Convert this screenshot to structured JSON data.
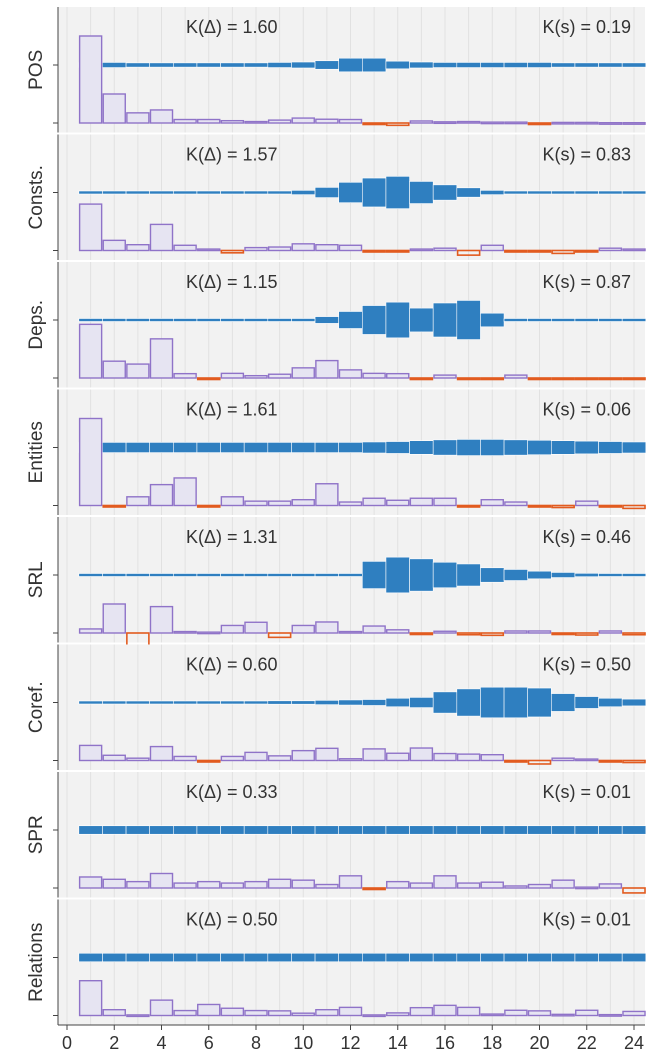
{
  "chart_data": {
    "type": "bar",
    "x_ticks": [
      "0",
      "2",
      "4",
      "6",
      "8",
      "10",
      "12",
      "14",
      "16",
      "18",
      "20",
      "22",
      "24"
    ],
    "xlim": [
      0,
      24
    ],
    "colors": {
      "weight_bar": "#2f7fc0",
      "positive_fill": "#e6e4f2",
      "positive_stroke": "#8f73c8",
      "negative_stroke": "#e25b1f",
      "panel_bg": "#f2f2f2",
      "grid": "#e1e1e1"
    },
    "panels": [
      {
        "label": "POS",
        "k_delta": "K(Δ) = 1.60",
        "k_s": "K(s) = 0.19",
        "weights": [
          0.06,
          0.06,
          0.05,
          0.05,
          0.05,
          0.05,
          0.05,
          0.05,
          0.06,
          0.07,
          0.1,
          0.16,
          0.16,
          0.09,
          0.07,
          0.06,
          0.06,
          0.06,
          0.06,
          0.06,
          0.05,
          0.05,
          0.05,
          0.05
        ],
        "deltas": [
          3.0,
          1.0,
          0.35,
          0.45,
          0.12,
          0.12,
          0.08,
          0.05,
          0.1,
          0.17,
          0.13,
          0.12,
          -0.05,
          -0.08,
          0.07,
          0.04,
          0.05,
          0.03,
          0.03,
          -0.05,
          0.02,
          0.02,
          0.01,
          0.01
        ]
      },
      {
        "label": "Consts.",
        "k_delta": "K(Δ) = 1.57",
        "k_s": "K(s) = 0.83",
        "weights": [
          0.03,
          0.03,
          0.03,
          0.03,
          0.03,
          0.03,
          0.03,
          0.03,
          0.03,
          0.05,
          0.12,
          0.24,
          0.34,
          0.38,
          0.26,
          0.18,
          0.11,
          0.05,
          0.03,
          0.03,
          0.03,
          0.03,
          0.03,
          0.03
        ],
        "deltas": [
          1.6,
          0.35,
          0.2,
          0.9,
          0.18,
          0.05,
          -0.08,
          0.1,
          0.12,
          0.23,
          0.2,
          0.18,
          -0.04,
          -0.03,
          0.05,
          0.08,
          -0.16,
          0.18,
          -0.03,
          -0.03,
          -0.1,
          -0.05,
          0.08,
          0.05
        ]
      },
      {
        "label": "Deps.",
        "k_delta": "K(Δ) = 1.15",
        "k_s": "K(s) = 0.87",
        "weights": [
          0.03,
          0.03,
          0.03,
          0.03,
          0.03,
          0.03,
          0.03,
          0.03,
          0.03,
          0.03,
          0.08,
          0.2,
          0.34,
          0.42,
          0.28,
          0.4,
          0.46,
          0.16,
          0.03,
          0.03,
          0.03,
          0.03,
          0.03,
          0.03
        ],
        "deltas": [
          1.85,
          0.58,
          0.48,
          1.35,
          0.15,
          -0.05,
          0.16,
          0.08,
          0.13,
          0.35,
          0.6,
          0.28,
          0.16,
          0.15,
          -0.04,
          0.1,
          -0.04,
          -0.04,
          0.1,
          -0.03,
          -0.02,
          -0.04,
          -0.04,
          -0.02
        ]
      },
      {
        "label": "Entities",
        "k_delta": "K(Δ) = 1.61",
        "k_s": "K(s) = 0.06",
        "weights": [
          0.12,
          0.12,
          0.12,
          0.12,
          0.12,
          0.12,
          0.12,
          0.12,
          0.12,
          0.12,
          0.12,
          0.12,
          0.13,
          0.14,
          0.16,
          0.18,
          0.19,
          0.19,
          0.18,
          0.17,
          0.16,
          0.15,
          0.14,
          0.13
        ],
        "deltas": [
          3.0,
          -0.05,
          0.3,
          0.72,
          0.95,
          -0.02,
          0.3,
          0.15,
          0.15,
          0.2,
          0.75,
          0.12,
          0.25,
          0.18,
          0.25,
          0.25,
          -0.05,
          0.2,
          0.12,
          -0.02,
          -0.07,
          0.15,
          -0.02,
          -0.1
        ]
      },
      {
        "label": "SRL",
        "k_delta": "K(Δ) = 1.31",
        "k_s": "K(s) = 0.46",
        "weights": [
          0.03,
          0.03,
          0.03,
          0.03,
          0.03,
          0.03,
          0.03,
          0.03,
          0.03,
          0.03,
          0.03,
          0.03,
          0.32,
          0.42,
          0.38,
          0.3,
          0.26,
          0.17,
          0.13,
          0.09,
          0.06,
          0.04,
          0.03,
          0.03
        ],
        "deltas": [
          0.14,
          1.0,
          -2.2,
          0.91,
          0.05,
          0.03,
          0.26,
          0.37,
          -0.15,
          0.26,
          0.38,
          0.05,
          0.24,
          0.11,
          -0.02,
          0.06,
          -0.06,
          -0.08,
          0.07,
          0.07,
          -0.03,
          -0.07,
          0.07,
          -0.06
        ]
      },
      {
        "label": "Coref.",
        "k_delta": "K(Δ) = 0.60",
        "k_s": "K(s) = 0.50",
        "weights": [
          0.02,
          0.02,
          0.02,
          0.02,
          0.02,
          0.02,
          0.03,
          0.03,
          0.04,
          0.04,
          0.05,
          0.06,
          0.07,
          0.1,
          0.12,
          0.25,
          0.32,
          0.36,
          0.36,
          0.34,
          0.21,
          0.14,
          0.1,
          0.08
        ],
        "deltas": [
          0.52,
          0.18,
          0.08,
          0.48,
          0.14,
          -0.02,
          0.14,
          0.28,
          0.16,
          0.34,
          0.42,
          0.06,
          0.4,
          0.25,
          0.43,
          0.24,
          0.22,
          0.2,
          -0.02,
          -0.12,
          0.08,
          0.05,
          -0.04,
          -0.07
        ]
      },
      {
        "label": "SPR",
        "k_delta": "K(Δ) = 0.33",
        "k_s": "K(s) = 0.01",
        "weights": [
          0.1,
          0.1,
          0.1,
          0.1,
          0.1,
          0.1,
          0.1,
          0.1,
          0.1,
          0.1,
          0.1,
          0.1,
          0.1,
          0.1,
          0.1,
          0.1,
          0.1,
          0.1,
          0.1,
          0.1,
          0.1,
          0.1,
          0.1,
          0.1
        ],
        "deltas": [
          0.38,
          0.3,
          0.22,
          0.5,
          0.17,
          0.22,
          0.17,
          0.22,
          0.3,
          0.27,
          0.12,
          0.42,
          -0.02,
          0.22,
          0.17,
          0.42,
          0.17,
          0.2,
          0.07,
          0.12,
          0.27,
          0.03,
          0.14,
          -0.17
        ]
      },
      {
        "label": "Relations",
        "k_delta": "K(Δ) = 0.50",
        "k_s": "K(s) = 0.01",
        "weights": [
          0.1,
          0.1,
          0.1,
          0.1,
          0.1,
          0.1,
          0.1,
          0.1,
          0.1,
          0.1,
          0.1,
          0.1,
          0.1,
          0.1,
          0.1,
          0.1,
          0.1,
          0.1,
          0.1,
          0.1,
          0.1,
          0.1,
          0.1,
          0.1
        ],
        "deltas": [
          1.2,
          0.2,
          0.02,
          0.53,
          0.17,
          0.38,
          0.25,
          0.17,
          0.16,
          0.08,
          0.2,
          0.28,
          0.02,
          0.09,
          0.27,
          0.35,
          0.28,
          0.05,
          0.18,
          0.16,
          0.04,
          0.18,
          0.03,
          0.14
        ]
      }
    ]
  }
}
